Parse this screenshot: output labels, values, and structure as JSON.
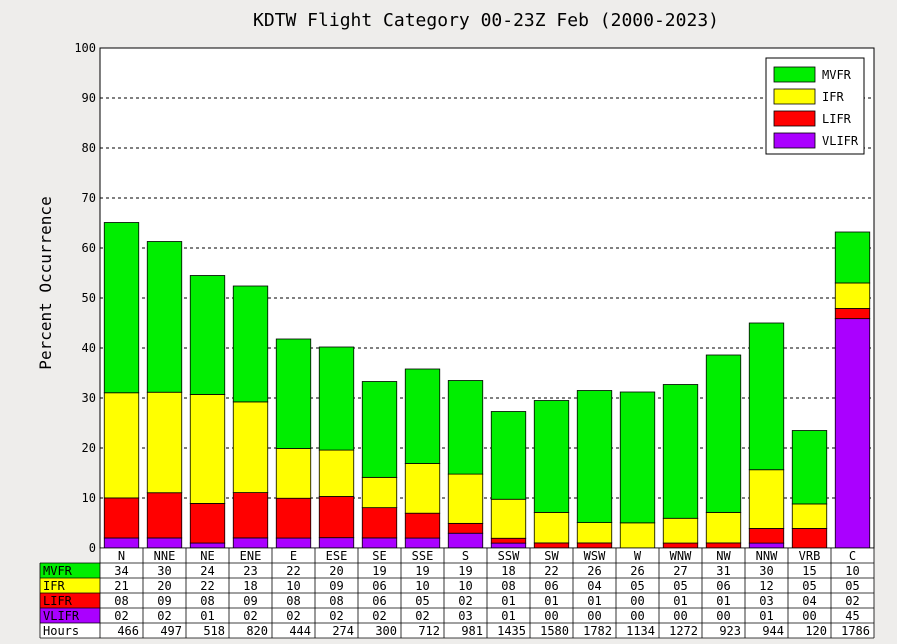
{
  "chart_data": {
    "type": "bar",
    "stacked": true,
    "title": "KDTW Flight Category 00-23Z Feb (2000-2023)",
    "ylabel": "Percent Occurrence",
    "xlabel": "",
    "ylim": [
      0,
      100
    ],
    "yticks": [
      0,
      10,
      20,
      30,
      40,
      50,
      60,
      70,
      80,
      90,
      100
    ],
    "grid": true,
    "legend_position": "top-right",
    "categories": [
      "N",
      "NNE",
      "NE",
      "ENE",
      "E",
      "ESE",
      "SE",
      "SSE",
      "S",
      "SSW",
      "SW",
      "WSW",
      "W",
      "WNW",
      "NW",
      "NNW",
      "VRB",
      "C"
    ],
    "series": [
      {
        "name": "VLIFR",
        "color": "#aa00ff",
        "values": [
          2,
          2,
          1,
          2,
          2,
          2,
          2,
          2,
          3,
          1,
          0,
          0,
          0,
          0,
          0,
          1,
          0,
          45
        ],
        "labels": [
          "02",
          "02",
          "01",
          "02",
          "02",
          "02",
          "02",
          "02",
          "03",
          "01",
          "00",
          "00",
          "00",
          "00",
          "00",
          "01",
          "00",
          "45"
        ]
      },
      {
        "name": "LIFR",
        "color": "#ff0000",
        "values": [
          8,
          9,
          8,
          9,
          8,
          8,
          6,
          5,
          2,
          1,
          1,
          1,
          0,
          1,
          1,
          3,
          4,
          2
        ],
        "labels": [
          "08",
          "09",
          "08",
          "09",
          "08",
          "08",
          "06",
          "05",
          "02",
          "01",
          "01",
          "01",
          "00",
          "01",
          "01",
          "03",
          "04",
          "02"
        ]
      },
      {
        "name": "IFR",
        "color": "#ffff00",
        "values": [
          21,
          20,
          22,
          18,
          10,
          9,
          6,
          10,
          10,
          8,
          6,
          4,
          5,
          5,
          6,
          12,
          5,
          5
        ],
        "labels": [
          "21",
          "20",
          "22",
          "18",
          "10",
          "09",
          "06",
          "10",
          "10",
          "08",
          "06",
          "04",
          "05",
          "05",
          "06",
          "12",
          "05",
          "05"
        ]
      },
      {
        "name": "MVFR",
        "color": "#00ee00",
        "values": [
          34,
          30,
          24,
          23,
          22,
          20,
          19,
          19,
          19,
          18,
          22,
          26,
          26,
          27,
          31,
          30,
          15,
          10
        ],
        "labels": [
          "34",
          "30",
          "24",
          "23",
          "22",
          "20",
          "19",
          "19",
          "19",
          "18",
          "22",
          "26",
          "26",
          "27",
          "31",
          "30",
          "15",
          "10"
        ]
      }
    ],
    "stack_totals": [
      65.1,
      61.3,
      54.5,
      52.4,
      41.8,
      40.2,
      33.3,
      35.8,
      33.5,
      27.3,
      29.5,
      31.5,
      31.2,
      32.7,
      38.6,
      45.0,
      23.5,
      63.2
    ],
    "table": {
      "row_order": [
        "MVFR",
        "IFR",
        "LIFR",
        "VLIFR"
      ],
      "hours_label": "Hours",
      "hours": [
        "466",
        "497",
        "518",
        "820",
        "444",
        "274",
        "300",
        "712",
        "981",
        "1435",
        "1580",
        "1782",
        "1134",
        "1272",
        "923",
        "944",
        "120",
        "1786"
      ]
    }
  }
}
